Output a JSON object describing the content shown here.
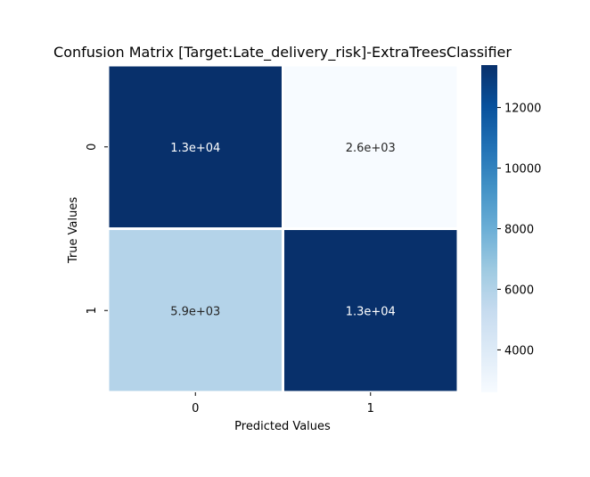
{
  "chart_data": {
    "type": "heatmap",
    "title": "Confusion Matrix [Target:Late_delivery_risk]-ExtraTreesClassifier",
    "xlabel": "Predicted Values",
    "ylabel": "True Values",
    "x_categories": [
      "0",
      "1"
    ],
    "y_categories": [
      "0",
      "1"
    ],
    "values": [
      [
        13400,
        2600
      ],
      [
        5900,
        13400
      ]
    ],
    "annotations": [
      [
        "1.3e+04",
        "2.6e+03"
      ],
      [
        "5.9e+03",
        "1.3e+04"
      ]
    ],
    "colormap": "Blues",
    "colorbar": {
      "vmin": 2600,
      "vmax": 13400,
      "ticks": [
        4000,
        6000,
        8000,
        10000,
        12000
      ]
    },
    "cell_border_color": "#ffffff"
  }
}
